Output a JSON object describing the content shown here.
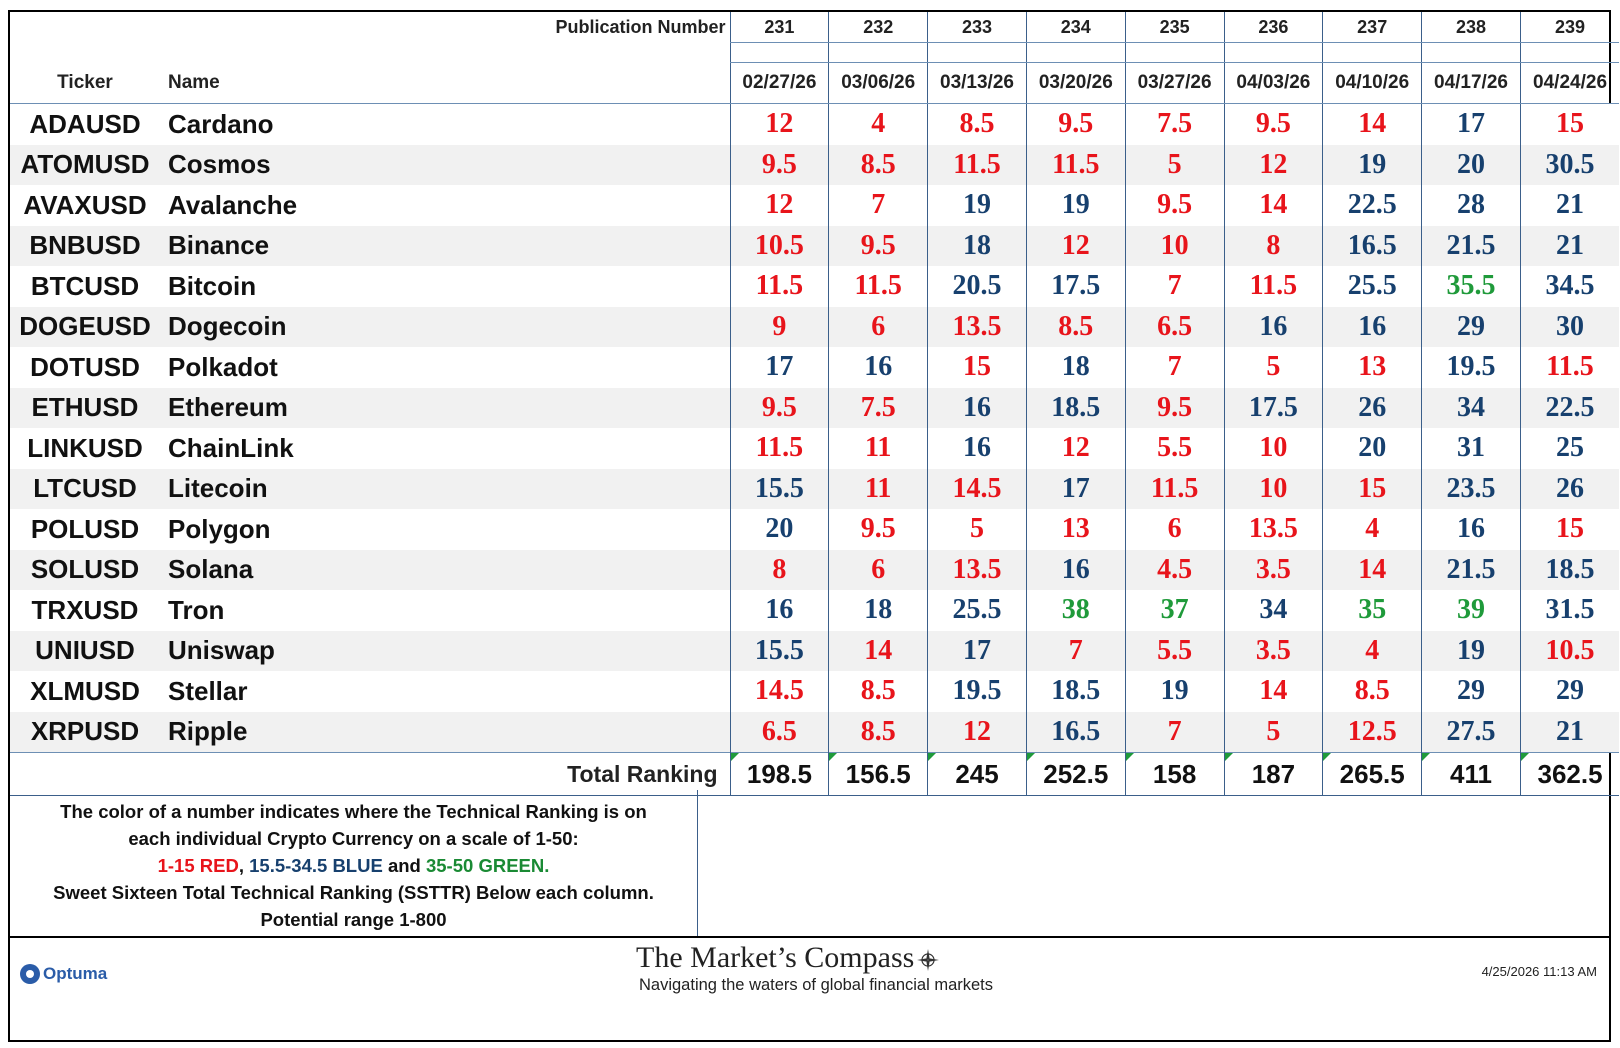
{
  "chart_data": {
    "type": "table",
    "headers": {
      "publication_label": "Publication Number",
      "ticker_label": "Ticker",
      "name_label": "Name",
      "total_label": "Total Ranking"
    },
    "publications": [
      "231",
      "232",
      "233",
      "234",
      "235",
      "236",
      "237",
      "238",
      "239"
    ],
    "dates": [
      "02/27/26",
      "03/06/26",
      "03/13/26",
      "03/20/26",
      "03/27/26",
      "04/03/26",
      "04/10/26",
      "04/17/26",
      "04/24/26"
    ],
    "rows": [
      {
        "ticker": "ADAUSD",
        "name": "Cardano",
        "values": [
          "12",
          "4",
          "8.5",
          "9.5",
          "7.5",
          "9.5",
          "14",
          "17",
          "15"
        ]
      },
      {
        "ticker": "ATOMUSD",
        "name": "Cosmos",
        "values": [
          "9.5",
          "8.5",
          "11.5",
          "11.5",
          "5",
          "12",
          "19",
          "20",
          "30.5"
        ]
      },
      {
        "ticker": "AVAXUSD",
        "name": "Avalanche",
        "values": [
          "12",
          "7",
          "19",
          "19",
          "9.5",
          "14",
          "22.5",
          "28",
          "21"
        ]
      },
      {
        "ticker": "BNBUSD",
        "name": "Binance",
        "values": [
          "10.5",
          "9.5",
          "18",
          "12",
          "10",
          "8",
          "16.5",
          "21.5",
          "21"
        ]
      },
      {
        "ticker": "BTCUSD",
        "name": "Bitcoin",
        "values": [
          "11.5",
          "11.5",
          "20.5",
          "17.5",
          "7",
          "11.5",
          "25.5",
          "35.5",
          "34.5"
        ]
      },
      {
        "ticker": "DOGEUSD",
        "name": "Dogecoin",
        "values": [
          "9",
          "6",
          "13.5",
          "8.5",
          "6.5",
          "16",
          "16",
          "29",
          "30"
        ]
      },
      {
        "ticker": "DOTUSD",
        "name": "Polkadot",
        "values": [
          "17",
          "16",
          "15",
          "18",
          "7",
          "5",
          "13",
          "19.5",
          "11.5"
        ]
      },
      {
        "ticker": "ETHUSD",
        "name": "Ethereum",
        "values": [
          "9.5",
          "7.5",
          "16",
          "18.5",
          "9.5",
          "17.5",
          "26",
          "34",
          "22.5"
        ]
      },
      {
        "ticker": "LINKUSD",
        "name": "ChainLink",
        "values": [
          "11.5",
          "11",
          "16",
          "12",
          "5.5",
          "10",
          "20",
          "31",
          "25"
        ]
      },
      {
        "ticker": "LTCUSD",
        "name": "Litecoin",
        "values": [
          "15.5",
          "11",
          "14.5",
          "17",
          "11.5",
          "10",
          "15",
          "23.5",
          "26"
        ]
      },
      {
        "ticker": "POLUSD",
        "name": "Polygon",
        "values": [
          "20",
          "9.5",
          "5",
          "13",
          "6",
          "13.5",
          "4",
          "16",
          "15"
        ]
      },
      {
        "ticker": "SOLUSD",
        "name": "Solana",
        "values": [
          "8",
          "6",
          "13.5",
          "16",
          "4.5",
          "3.5",
          "14",
          "21.5",
          "18.5"
        ]
      },
      {
        "ticker": "TRXUSD",
        "name": "Tron",
        "values": [
          "16",
          "18",
          "25.5",
          "38",
          "37",
          "34",
          "35",
          "39",
          "31.5"
        ]
      },
      {
        "ticker": "UNIUSD",
        "name": "Uniswap",
        "values": [
          "15.5",
          "14",
          "17",
          "7",
          "5.5",
          "3.5",
          "4",
          "19",
          "10.5"
        ]
      },
      {
        "ticker": "XLMUSD",
        "name": "Stellar",
        "values": [
          "14.5",
          "8.5",
          "19.5",
          "18.5",
          "19",
          "14",
          "8.5",
          "29",
          "29"
        ]
      },
      {
        "ticker": "XRPUSD",
        "name": "Ripple",
        "values": [
          "6.5",
          "8.5",
          "12",
          "16.5",
          "7",
          "5",
          "12.5",
          "27.5",
          "21"
        ]
      }
    ],
    "totals": [
      "198.5",
      "156.5",
      "245",
      "252.5",
      "158",
      "187",
      "265.5",
      "411",
      "362.5"
    ],
    "color_scale": [
      {
        "min": 1,
        "max": 15,
        "color": "#e8141b"
      },
      {
        "min": 15.5,
        "max": 34.5,
        "color": "#17406e"
      },
      {
        "min": 35,
        "max": 50,
        "color": "#1f9a3a"
      }
    ]
  },
  "legend": {
    "line1": "The color of a number indicates where the Technical Ranking is on",
    "line2": "each individual Crypto Currency on a scale of 1-50:",
    "red": "1-15 RED",
    "sep1": ", ",
    "blue": "15.5-34.5 BLUE",
    "sep2": " and ",
    "green": "35-50 GREEN.",
    "line4": "Sweet Sixteen Total Technical Ranking (SSTTR) Below each column.",
    "line5": "Potential range 1-800"
  },
  "footer": {
    "optuma": "Optuma",
    "title": "The Market’s Compass",
    "subtitle": "Navigating the waters of global financial markets",
    "timestamp": "4/25/2026 11:13 AM",
    "compass_icon": "compass-rose-icon",
    "optuma_icon": "optuma-logo-icon"
  }
}
